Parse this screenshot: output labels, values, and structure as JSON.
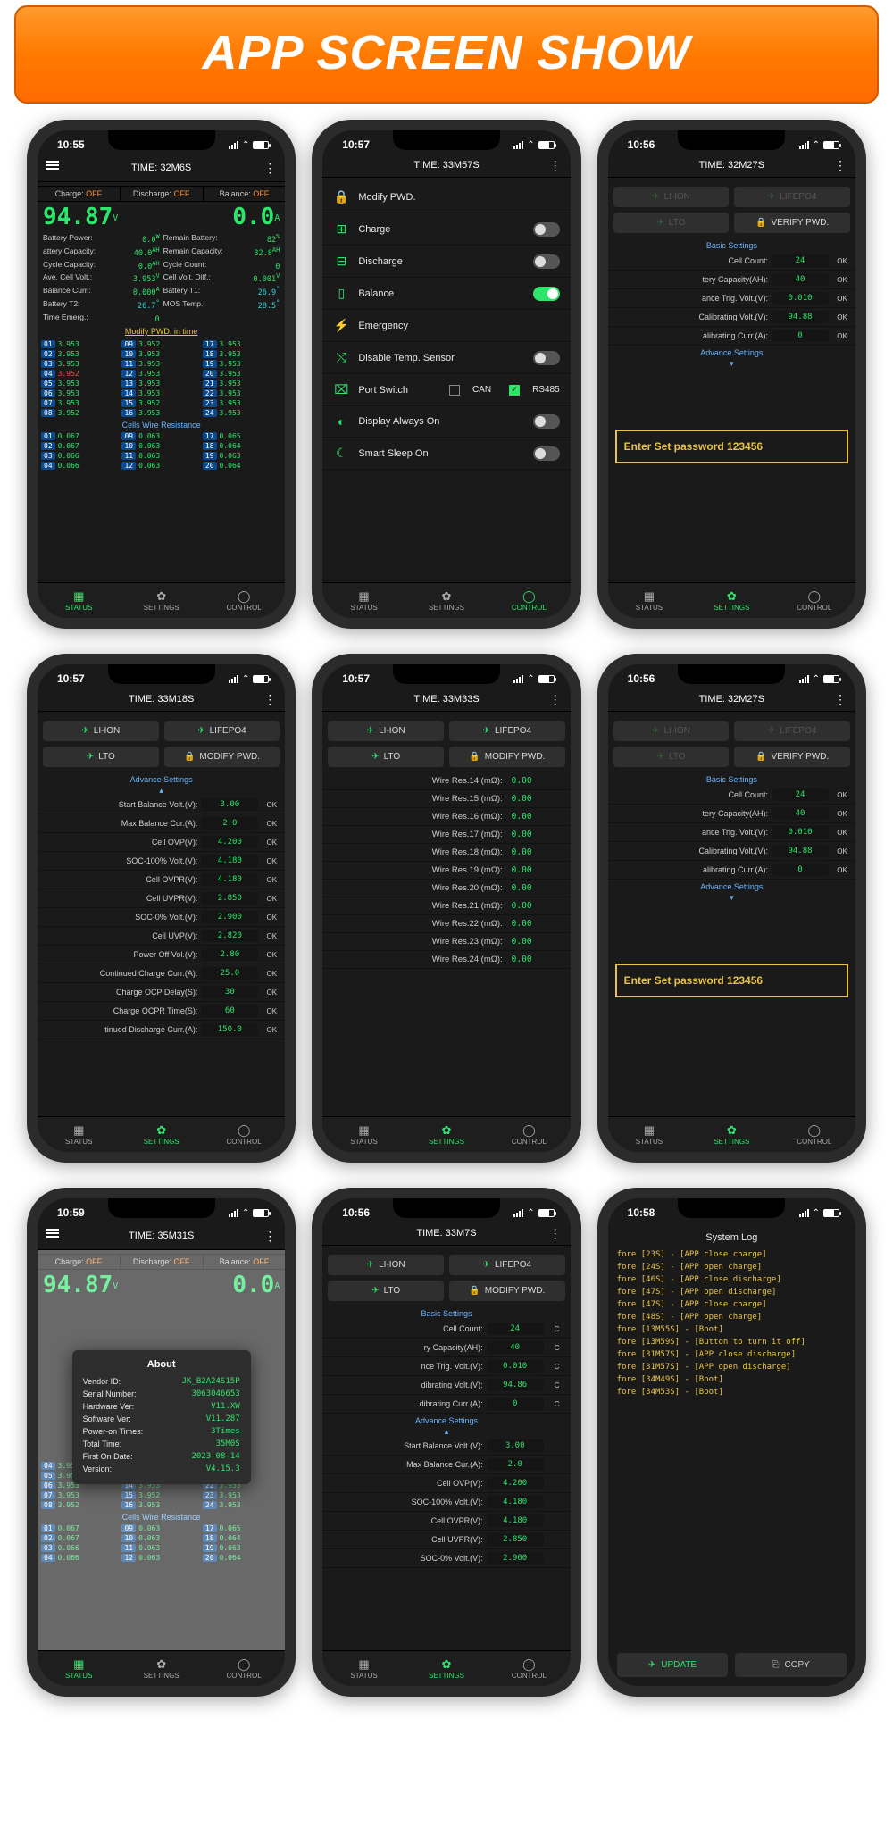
{
  "banner": {
    "title": "APP SCREEN SHOW",
    "bg_start": "#ff9a2e",
    "bg_end": "#ff6a00",
    "text_color": "#ffffff"
  },
  "colors": {
    "bg": "#1a1a1a",
    "green": "#2ee56b",
    "cyan": "#2fd4d8",
    "yellow": "#e8c34a",
    "blue": "#6ab5ff",
    "red": "#ff4a4a",
    "orange": "#ff8a2a",
    "badge": "#0b4a8f"
  },
  "nav": {
    "status": "STATUS",
    "settings": "SETTINGS",
    "control": "CONTROL"
  },
  "screen1": {
    "clock": "10:55",
    "title": "TIME: 32M6S",
    "toggles": {
      "charge_lbl": "Charge:",
      "discharge_lbl": "Discharge:",
      "balance_lbl": "Balance:",
      "off": "OFF"
    },
    "voltage": "94.87",
    "voltage_unit": "V",
    "current": "0.0",
    "current_unit": "A",
    "kv_left": [
      {
        "k": "Battery Power:",
        "v": "0.0",
        "u": "W"
      },
      {
        "k": "attery Capacity:",
        "v": "40.0",
        "u": "AH"
      },
      {
        "k": "Cycle Capacity:",
        "v": "0.0",
        "u": "AH"
      },
      {
        "k": "Ave. Cell Volt.:",
        "v": "3.953",
        "u": "V"
      },
      {
        "k": "Balance Curr.:",
        "v": "0.000",
        "u": "A"
      },
      {
        "k": "Battery T2:",
        "v": "26.7",
        "u": "°",
        "cyan": true
      },
      {
        "k": "Time Emerg.:",
        "v": "0",
        "u": ""
      }
    ],
    "kv_right": [
      {
        "k": "Remain Battery:",
        "v": "82",
        "u": "%"
      },
      {
        "k": "Remain Capacity:",
        "v": "32.8",
        "u": "AH"
      },
      {
        "k": "Cycle Count:",
        "v": "0",
        "u": ""
      },
      {
        "k": "Cell Volt. Diff.:",
        "v": "0.001",
        "u": "V"
      },
      {
        "k": "Battery T1:",
        "v": "26.9",
        "u": "°",
        "cyan": true
      },
      {
        "k": "MOS Temp.:",
        "v": "28.5",
        "u": "°",
        "cyan": true
      }
    ],
    "pwd_link": "Modify PWD. in time",
    "cells": [
      [
        "01",
        "3.953",
        "09",
        "3.952",
        "17",
        "3.953"
      ],
      [
        "02",
        "3.953",
        "10",
        "3.953",
        "18",
        "3.953"
      ],
      [
        "03",
        "3.953",
        "11",
        "3.953",
        "19",
        "3.953"
      ],
      [
        "04",
        "3.952",
        "12",
        "3.953",
        "20",
        "3.953"
      ],
      [
        "05",
        "3.953",
        "13",
        "3.953",
        "21",
        "3.953"
      ],
      [
        "06",
        "3.953",
        "14",
        "3.953",
        "22",
        "3.953"
      ],
      [
        "07",
        "3.953",
        "15",
        "3.952",
        "23",
        "3.953"
      ],
      [
        "08",
        "3.952",
        "16",
        "3.953",
        "24",
        "3.953"
      ]
    ],
    "cells_red_idx": 3,
    "wire_head": "Cells Wire Resistance",
    "wires": [
      [
        "01",
        "0.067",
        "09",
        "0.063",
        "17",
        "0.065"
      ],
      [
        "02",
        "0.067",
        "10",
        "0.063",
        "18",
        "0.064"
      ],
      [
        "03",
        "0.066",
        "11",
        "0.063",
        "19",
        "0.063"
      ],
      [
        "04",
        "0.066",
        "12",
        "0.063",
        "20",
        "0.064"
      ]
    ]
  },
  "screen2": {
    "clock": "10:57",
    "title": "TIME: 33M57S",
    "rows": [
      {
        "icon": "🔒",
        "label": "Modify PWD.",
        "sw": null
      },
      {
        "icon": "⊞",
        "label": "Charge",
        "sw": false
      },
      {
        "icon": "⊟",
        "label": "Discharge",
        "sw": false
      },
      {
        "icon": "▯",
        "label": "Balance",
        "sw": true
      },
      {
        "icon": "⚡",
        "label": "Emergency",
        "sw": null
      },
      {
        "icon": "⤭",
        "label": "Disable Temp. Sensor",
        "sw": false
      }
    ],
    "port": {
      "icon": "⌧",
      "label": "Port Switch",
      "can": "CAN",
      "can_on": false,
      "rs": "RS485",
      "rs_on": true
    },
    "rows2": [
      {
        "icon": "◐",
        "label": "Display Always On",
        "sw": false
      },
      {
        "icon": "☾",
        "label": "Smart Sleep On",
        "sw": false
      }
    ]
  },
  "screen3": {
    "clock": "10:56",
    "title": "TIME: 32M27S",
    "tabs": {
      "liion": "LI-ION",
      "lifepo": "LIFEPO4",
      "lto": "LTO",
      "verify": "VERIFY PWD."
    },
    "basic_head": "Basic Settings",
    "basic": [
      {
        "k": "Cell Count:",
        "v": "24"
      },
      {
        "k": "tery Capacity(AH):",
        "v": "40"
      },
      {
        "k": "ance Trig. Volt.(V):",
        "v": "0.010"
      },
      {
        "k": "Calibrating Volt.(V):",
        "v": "94.88"
      },
      {
        "k": "alibrating Curr.(A):",
        "v": "0"
      }
    ],
    "adv_head": "Advance Settings",
    "pw": "Enter Set password 123456"
  },
  "screen4": {
    "clock": "10:57",
    "title": "TIME: 33M18S",
    "tabs": {
      "liion": "LI-ION",
      "lifepo": "LIFEPO4",
      "lto": "LTO",
      "modify": "MODIFY PWD."
    },
    "adv_head": "Advance Settings",
    "rows": [
      {
        "k": "Start Balance Volt.(V):",
        "v": "3.00"
      },
      {
        "k": "Max Balance Cur.(A):",
        "v": "2.0"
      },
      {
        "k": "Cell OVP(V):",
        "v": "4.200"
      },
      {
        "k": "SOC-100% Volt.(V):",
        "v": "4.180"
      },
      {
        "k": "Cell OVPR(V):",
        "v": "4.180"
      },
      {
        "k": "Cell UVPR(V):",
        "v": "2.850"
      },
      {
        "k": "SOC-0% Volt.(V):",
        "v": "2.900"
      },
      {
        "k": "Cell UVP(V):",
        "v": "2.820"
      },
      {
        "k": "Power Off Vol.(V):",
        "v": "2.80"
      },
      {
        "k": "Continued Charge Curr.(A):",
        "v": "25.0"
      },
      {
        "k": "Charge OCP Delay(S):",
        "v": "30"
      },
      {
        "k": "Charge OCPR Time(S):",
        "v": "60"
      },
      {
        "k": "tinued Discharge Curr.(A):",
        "v": "150.0"
      }
    ],
    "ok": "OK"
  },
  "screen5": {
    "clock": "10:57",
    "title": "TIME: 33M33S",
    "tabs": {
      "liion": "LI-ION",
      "lifepo": "LIFEPO4",
      "lto": "LTO",
      "modify": "MODIFY PWD."
    },
    "rows": [
      {
        "k": "Wire Res.14 (mΩ):",
        "v": "0.00"
      },
      {
        "k": "Wire Res.15 (mΩ):",
        "v": "0.00"
      },
      {
        "k": "Wire Res.16 (mΩ):",
        "v": "0.00"
      },
      {
        "k": "Wire Res.17 (mΩ):",
        "v": "0.00"
      },
      {
        "k": "Wire Res.18 (mΩ):",
        "v": "0.00"
      },
      {
        "k": "Wire Res.19 (mΩ):",
        "v": "0.00"
      },
      {
        "k": "Wire Res.20 (mΩ):",
        "v": "0.00"
      },
      {
        "k": "Wire Res.21 (mΩ):",
        "v": "0.00"
      },
      {
        "k": "Wire Res.22 (mΩ):",
        "v": "0.00"
      },
      {
        "k": "Wire Res.23 (mΩ):",
        "v": "0.00"
      },
      {
        "k": "Wire Res.24 (mΩ):",
        "v": "0.00"
      }
    ]
  },
  "screen6": {
    "clock": "10:56",
    "title": "TIME: 32M27S",
    "pw": "Enter Set password 123456"
  },
  "screen7": {
    "clock": "10:59",
    "title": "TIME: 35M31S",
    "about_title": "About",
    "about": [
      {
        "k": "Vendor ID:",
        "v": "JK_B2A24S15P"
      },
      {
        "k": "Serial Number:",
        "v": "3063046653"
      },
      {
        "k": "Hardware Ver:",
        "v": "V11.XW"
      },
      {
        "k": "Software Ver:",
        "v": "V11.287"
      },
      {
        "k": "Power-on Times:",
        "v": "3Times"
      },
      {
        "k": "Total Time:",
        "v": "35M0S"
      },
      {
        "k": "First On Date:",
        "v": "2023-08-14"
      },
      {
        "k": "Version:",
        "v": "V4.15.3"
      }
    ]
  },
  "screen8": {
    "clock": "10:56",
    "title": "TIME: 33M7S",
    "tabs": {
      "liion": "LI-ION",
      "lifepo": "LIFEPO4",
      "lto": "LTO",
      "modify": "MODIFY PWD."
    },
    "basic_head": "Basic Settings",
    "basic": [
      {
        "k": "Cell Count:",
        "v": "24"
      },
      {
        "k": "ry Capacity(AH):",
        "v": "40"
      },
      {
        "k": "nce Trig. Volt.(V):",
        "v": "0.010"
      },
      {
        "k": "dibrating Volt.(V):",
        "v": "94.86"
      },
      {
        "k": "dibrating Curr.(A):",
        "v": "0"
      }
    ],
    "adv_head": "Advance Settings",
    "adv": [
      {
        "k": "Start Balance Volt.(V):",
        "v": "3.00"
      },
      {
        "k": "Max Balance Cur.(A):",
        "v": "2.0"
      },
      {
        "k": "Cell OVP(V):",
        "v": "4.200"
      },
      {
        "k": "SOC-100% Volt.(V):",
        "v": "4.180"
      },
      {
        "k": "Cell OVPR(V):",
        "v": "4.180"
      },
      {
        "k": "Cell UVPR(V):",
        "v": "2.850"
      },
      {
        "k": "SOC-0% Volt.(V):",
        "v": "2.900"
      }
    ]
  },
  "screen9": {
    "clock": "10:58",
    "title": "System Log",
    "lines": [
      "fore [23S] - [APP close charge]",
      "fore [24S] - [APP open charge]",
      "fore [46S] - [APP close discharge]",
      "fore [47S] - [APP open discharge]",
      "fore [47S] - [APP close charge]",
      "fore [48S] - [APP open charge]",
      "fore [13M55S] - [Boot]",
      "fore [13M59S] - [Button to turn it off]",
      "fore [31M57S] - [APP close discharge]",
      "fore [31M57S] - [APP open discharge]",
      "fore [34M49S] - [Boot]",
      "fore [34M53S] - [Boot]"
    ],
    "update": "UPDATE",
    "copy": "COPY"
  }
}
